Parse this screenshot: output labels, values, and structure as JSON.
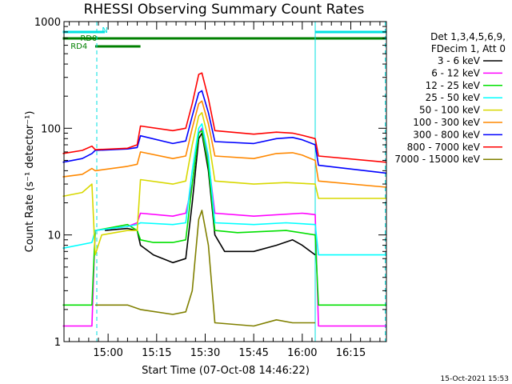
{
  "chart_data": {
    "type": "line",
    "title": "RHESSI Observing Summary Count Rates",
    "xlabel": "Start Time (07-Oct-08 14:46:22)",
    "ylabel": "Count Rate (s⁻¹ detector⁻¹)",
    "y_scale": "log",
    "ylim": [
      1,
      1000
    ],
    "y_ticks": [
      1,
      10,
      100,
      1000
    ],
    "y_tick_labels": [
      "1",
      "10",
      "100",
      "1000"
    ],
    "x_range": [
      "14:46:22",
      "16:26:00"
    ],
    "x_ticks": [
      "15:00",
      "15:15",
      "15:30",
      "15:45",
      "16:00",
      "16:15"
    ],
    "legend_header": [
      "Det 1,3,4,5,6,9,",
      "FDecim 1, Att 0"
    ],
    "legend_position": "right",
    "timestamp": "15-Oct-2021 15:53",
    "flags": {
      "N": {
        "label": "N",
        "color": "#00e0e0",
        "ranges": [
          [
            "14:46",
            "14:59"
          ],
          [
            "16:04",
            "16:26"
          ]
        ]
      },
      "RD0": {
        "label": "RD0",
        "color": "#008000",
        "ranges": [
          [
            "14:46",
            "16:26"
          ]
        ]
      },
      "RD4": {
        "label": "RD4",
        "color": "#008000",
        "ranges": [
          [
            "14:56",
            "15:10"
          ]
        ]
      }
    },
    "vertical_markers": [
      {
        "time": "14:46:22",
        "style": "solid",
        "color": "#00e0e0"
      },
      {
        "time": "14:56:30",
        "style": "dashed",
        "color": "#00e0e0"
      },
      {
        "time": "16:04:00",
        "style": "solid",
        "color": "#00e0e0"
      },
      {
        "time": "16:25:40",
        "style": "dashed",
        "color": "#00e0e0"
      }
    ],
    "series": [
      {
        "name": "3 - 6 keV",
        "color": "#000000",
        "points": [
          [
            "14:46",
            null
          ],
          [
            "14:58",
            null
          ],
          [
            "14:59",
            11
          ],
          [
            "15:06",
            11.5
          ],
          [
            "15:09",
            11
          ],
          [
            "15:10",
            8
          ],
          [
            "15:14",
            6.5
          ],
          [
            "15:20",
            5.5
          ],
          [
            "15:24",
            6
          ],
          [
            "15:26",
            20
          ],
          [
            "15:28",
            80
          ],
          [
            "15:29",
            90
          ],
          [
            "15:31",
            40
          ],
          [
            "15:33",
            10
          ],
          [
            "15:36",
            7
          ],
          [
            "15:45",
            7
          ],
          [
            "15:52",
            8
          ],
          [
            "15:57",
            9
          ],
          [
            "16:00",
            8
          ],
          [
            "16:04",
            6.5
          ],
          [
            "16:05",
            null
          ]
        ]
      },
      {
        "name": "6 - 12 keV",
        "color": "#ff00ff",
        "points": [
          [
            "14:46",
            1.4
          ],
          [
            "14:55",
            1.4
          ],
          [
            "14:56",
            11
          ],
          [
            "15:06",
            12
          ],
          [
            "15:09",
            13
          ],
          [
            "15:10",
            16
          ],
          [
            "15:20",
            15
          ],
          [
            "15:24",
            16
          ],
          [
            "15:26",
            30
          ],
          [
            "15:28",
            90
          ],
          [
            "15:29",
            100
          ],
          [
            "15:31",
            50
          ],
          [
            "15:33",
            16
          ],
          [
            "15:45",
            15
          ],
          [
            "16:00",
            16
          ],
          [
            "16:04",
            15.5
          ],
          [
            "16:05",
            1.4
          ],
          [
            "16:26",
            1.4
          ]
        ]
      },
      {
        "name": "12 - 25 keV",
        "color": "#00e000",
        "points": [
          [
            "14:46",
            2.2
          ],
          [
            "14:55",
            2.2
          ],
          [
            "14:56",
            11
          ],
          [
            "15:06",
            12.5
          ],
          [
            "15:09",
            11
          ],
          [
            "15:10",
            9
          ],
          [
            "15:14",
            8.5
          ],
          [
            "15:20",
            8.5
          ],
          [
            "15:24",
            9
          ],
          [
            "15:26",
            30
          ],
          [
            "15:28",
            90
          ],
          [
            "15:29",
            95
          ],
          [
            "15:31",
            45
          ],
          [
            "15:33",
            11
          ],
          [
            "15:40",
            10.5
          ],
          [
            "15:55",
            11
          ],
          [
            "16:04",
            10
          ],
          [
            "16:05",
            2.2
          ],
          [
            "16:26",
            2.2
          ]
        ]
      },
      {
        "name": "25 - 50 keV",
        "color": "#00ffff",
        "points": [
          [
            "14:46",
            7.5
          ],
          [
            "14:55",
            8.5
          ],
          [
            "14:56",
            11
          ],
          [
            "15:06",
            12
          ],
          [
            "15:09",
            12.5
          ],
          [
            "15:10",
            13
          ],
          [
            "15:20",
            12.5
          ],
          [
            "15:24",
            13
          ],
          [
            "15:26",
            40
          ],
          [
            "15:28",
            100
          ],
          [
            "15:29",
            110
          ],
          [
            "15:31",
            55
          ],
          [
            "15:33",
            13
          ],
          [
            "15:45",
            12.5
          ],
          [
            "15:55",
            13
          ],
          [
            "16:04",
            12.5
          ],
          [
            "16:05",
            6.5
          ],
          [
            "16:26",
            6.5
          ]
        ]
      },
      {
        "name": "50 - 100 keV",
        "color": "#d8d800",
        "points": [
          [
            "14:46",
            23
          ],
          [
            "14:52",
            25
          ],
          [
            "14:55",
            30
          ],
          [
            "14:56",
            6.5
          ],
          [
            "14:58",
            10
          ],
          [
            "15:06",
            11
          ],
          [
            "15:09",
            11
          ],
          [
            "15:10",
            33
          ],
          [
            "15:20",
            30
          ],
          [
            "15:24",
            32
          ],
          [
            "15:26",
            70
          ],
          [
            "15:28",
            130
          ],
          [
            "15:29",
            140
          ],
          [
            "15:31",
            80
          ],
          [
            "15:33",
            32
          ],
          [
            "15:45",
            30
          ],
          [
            "15:55",
            31
          ],
          [
            "16:04",
            30
          ],
          [
            "16:05",
            22
          ],
          [
            "16:26",
            22
          ]
        ]
      },
      {
        "name": "100 - 300 keV",
        "color": "#ff8800",
        "points": [
          [
            "14:46",
            35
          ],
          [
            "14:52",
            37
          ],
          [
            "14:55",
            42
          ],
          [
            "14:56",
            40
          ],
          [
            "15:06",
            44
          ],
          [
            "15:09",
            46
          ],
          [
            "15:10",
            60
          ],
          [
            "15:20",
            52
          ],
          [
            "15:24",
            55
          ],
          [
            "15:26",
            100
          ],
          [
            "15:28",
            170
          ],
          [
            "15:29",
            180
          ],
          [
            "15:31",
            110
          ],
          [
            "15:33",
            55
          ],
          [
            "15:45",
            52
          ],
          [
            "15:52",
            58
          ],
          [
            "15:57",
            59
          ],
          [
            "16:00",
            56
          ],
          [
            "16:04",
            50
          ],
          [
            "16:05",
            32
          ],
          [
            "16:26",
            28
          ]
        ]
      },
      {
        "name": "300 - 800 keV",
        "color": "#0000ff",
        "points": [
          [
            "14:46",
            48
          ],
          [
            "14:52",
            52
          ],
          [
            "14:55",
            58
          ],
          [
            "14:56",
            62
          ],
          [
            "15:06",
            64
          ],
          [
            "15:09",
            66
          ],
          [
            "15:10",
            85
          ],
          [
            "15:20",
            72
          ],
          [
            "15:24",
            76
          ],
          [
            "15:26",
            130
          ],
          [
            "15:28",
            215
          ],
          [
            "15:29",
            225
          ],
          [
            "15:31",
            140
          ],
          [
            "15:33",
            75
          ],
          [
            "15:45",
            72
          ],
          [
            "15:52",
            80
          ],
          [
            "15:57",
            82
          ],
          [
            "16:00",
            78
          ],
          [
            "16:04",
            70
          ],
          [
            "16:05",
            45
          ],
          [
            "16:26",
            38
          ]
        ]
      },
      {
        "name": "800 - 7000 keV",
        "color": "#ff0000",
        "points": [
          [
            "14:46",
            58
          ],
          [
            "14:52",
            62
          ],
          [
            "14:55",
            68
          ],
          [
            "14:56",
            63
          ],
          [
            "15:06",
            65
          ],
          [
            "15:09",
            70
          ],
          [
            "15:10",
            105
          ],
          [
            "15:20",
            95
          ],
          [
            "15:24",
            100
          ],
          [
            "15:26",
            170
          ],
          [
            "15:28",
            320
          ],
          [
            "15:29",
            330
          ],
          [
            "15:31",
            190
          ],
          [
            "15:33",
            95
          ],
          [
            "15:45",
            88
          ],
          [
            "15:52",
            92
          ],
          [
            "15:57",
            90
          ],
          [
            "16:00",
            86
          ],
          [
            "16:04",
            80
          ],
          [
            "16:05",
            55
          ],
          [
            "16:26",
            48
          ]
        ]
      },
      {
        "name": "7000 - 15000 keV",
        "color": "#808000",
        "points": [
          [
            "14:46",
            null
          ],
          [
            "14:55",
            null
          ],
          [
            "14:56",
            2.2
          ],
          [
            "15:06",
            2.2
          ],
          [
            "15:10",
            2.0
          ],
          [
            "15:20",
            1.8
          ],
          [
            "15:24",
            1.9
          ],
          [
            "15:26",
            3
          ],
          [
            "15:28",
            14
          ],
          [
            "15:29",
            17
          ],
          [
            "15:31",
            8
          ],
          [
            "15:33",
            1.5
          ],
          [
            "15:45",
            1.4
          ],
          [
            "15:52",
            1.6
          ],
          [
            "15:57",
            1.5
          ],
          [
            "16:04",
            1.5
          ],
          [
            "16:05",
            null
          ]
        ]
      }
    ]
  }
}
